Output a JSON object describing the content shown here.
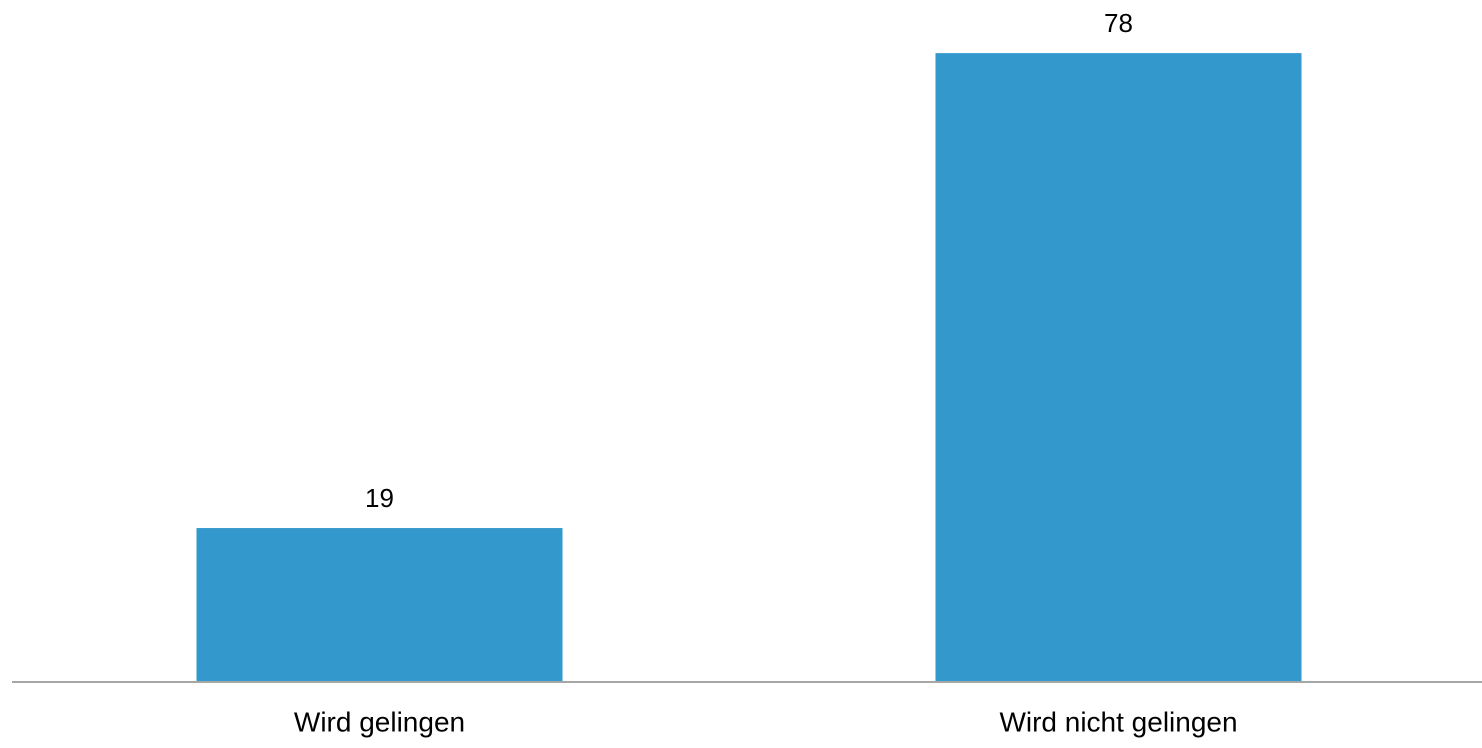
{
  "chart_data": {
    "type": "bar",
    "categories": [
      "Wird gelingen",
      "Wird nicht gelingen"
    ],
    "values": [
      19,
      78
    ],
    "color": "#3399cc"
  }
}
